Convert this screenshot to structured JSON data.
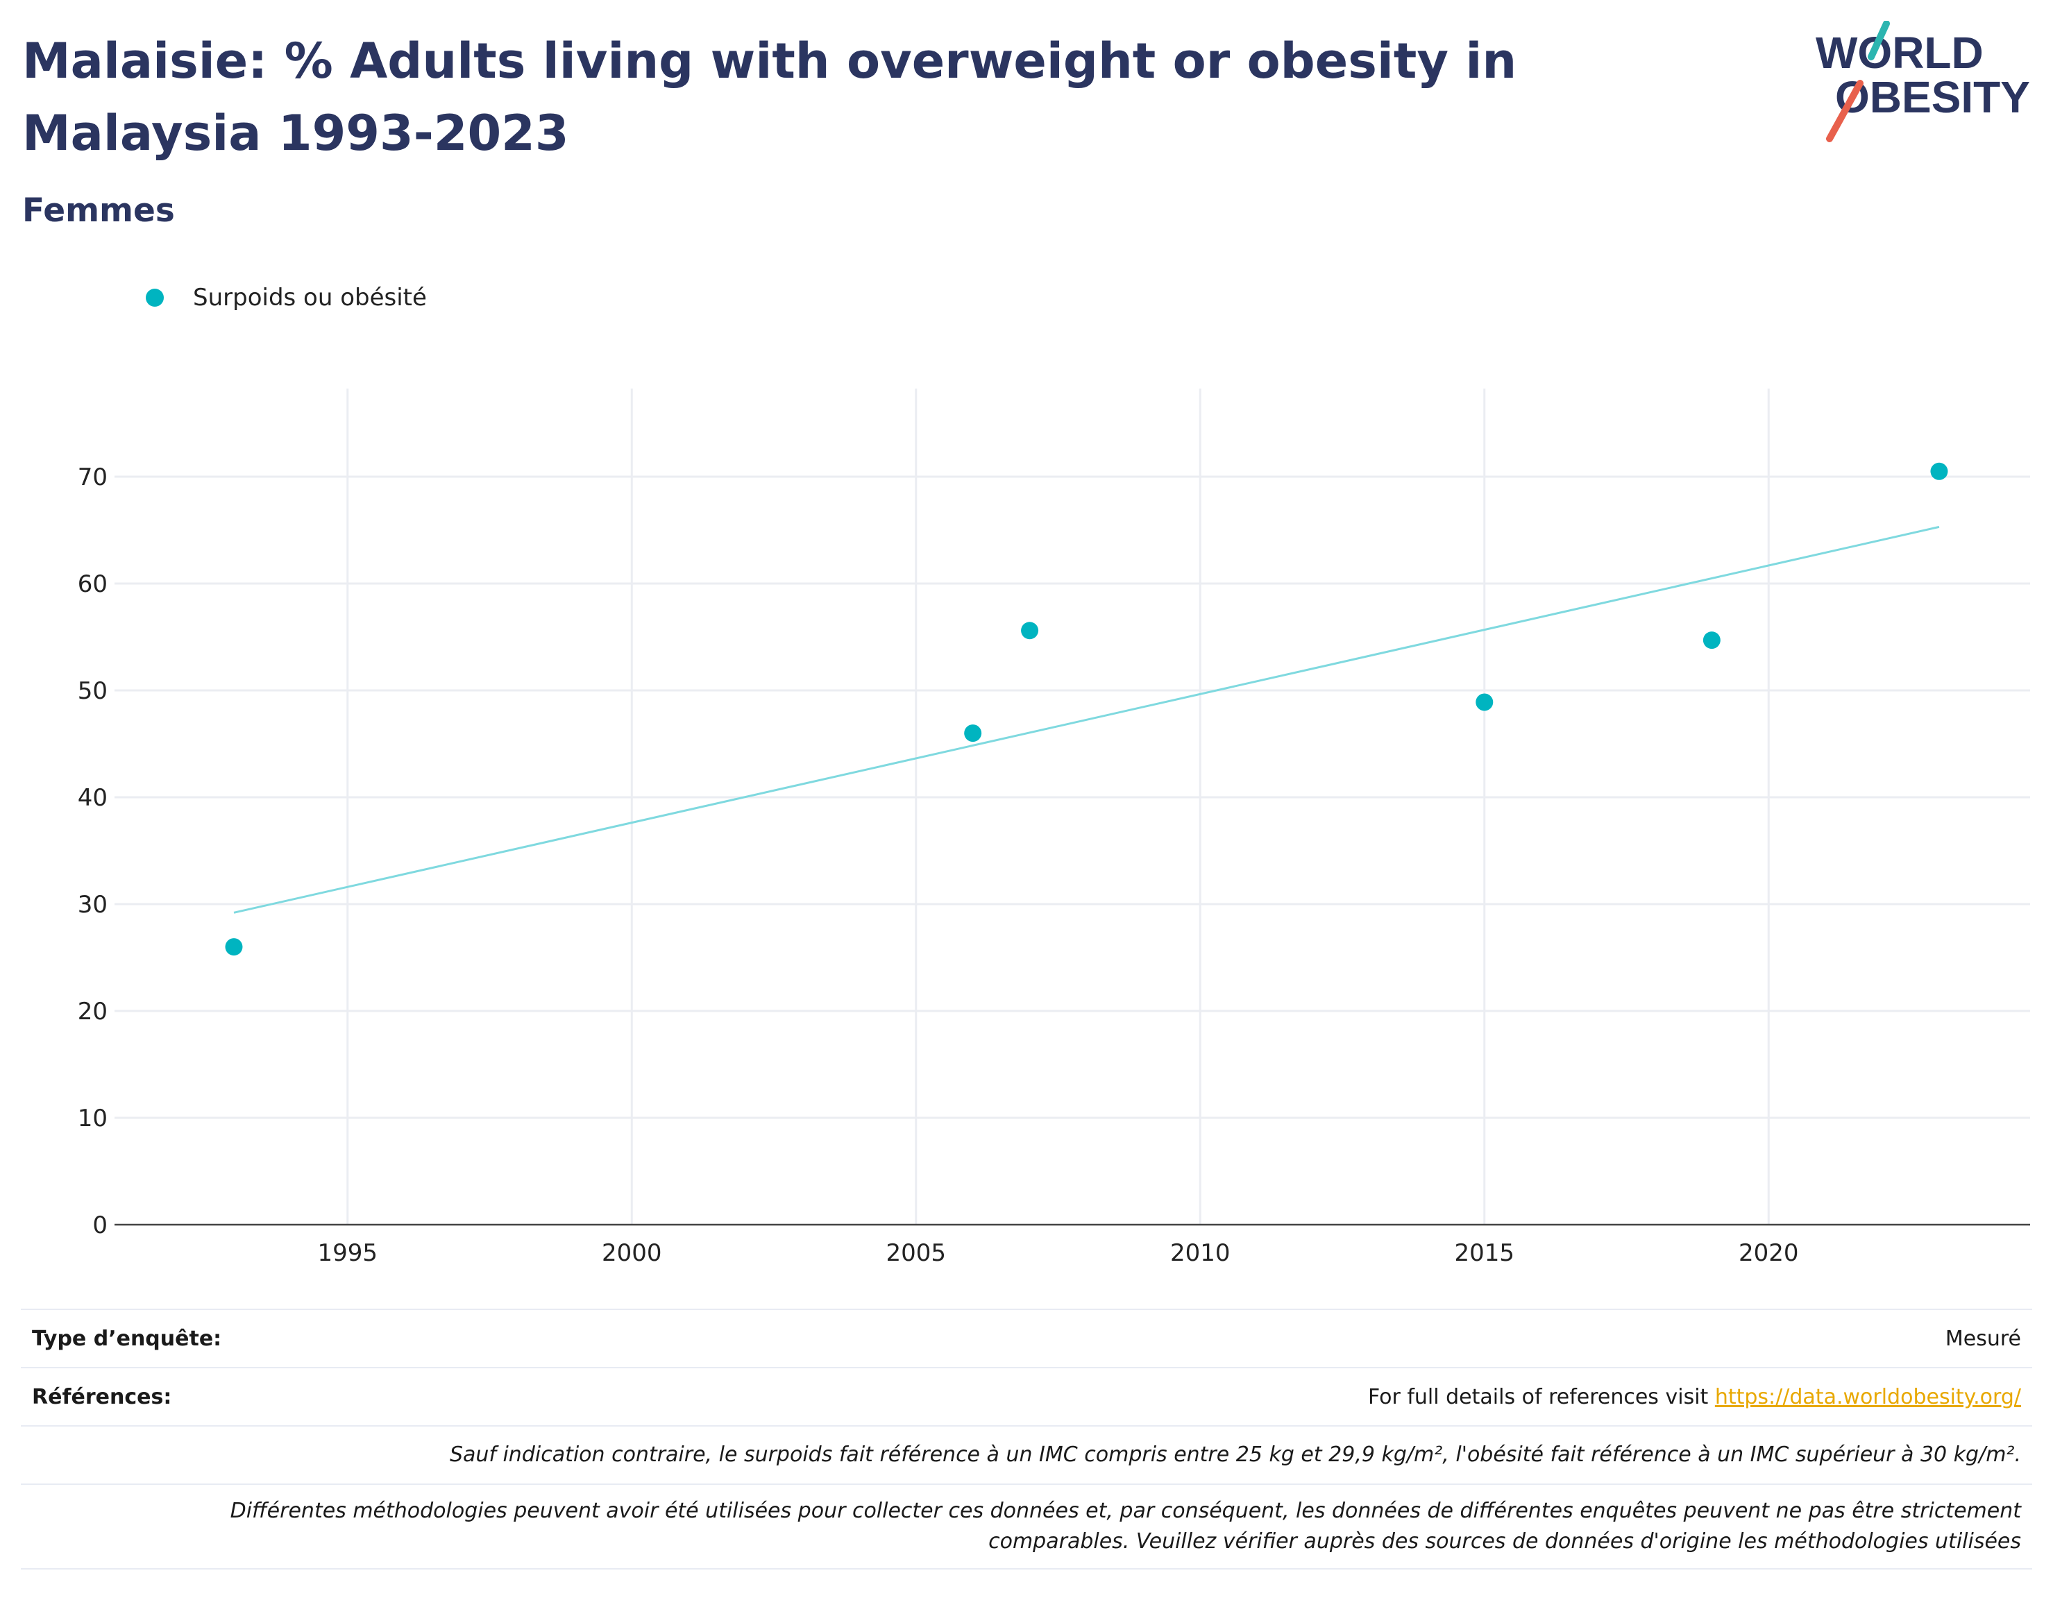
{
  "header": {
    "title": "Malaisie: % Adults living with overweight or obesity in Malaysia 1993-2023",
    "subtitle": "Femmes"
  },
  "logo": {
    "line1": "WORLD",
    "line2": "OBESITY",
    "text_color": "#2b3560",
    "accent_teal": "#2cb5b0",
    "accent_red": "#e8604c"
  },
  "legend": {
    "label": "Surpoids ou obésité"
  },
  "chart_data": {
    "type": "scatter",
    "series": [
      {
        "name": "Surpoids ou obésité",
        "color": "#00b4c0",
        "points": [
          {
            "x": 1993,
            "y": 26.0
          },
          {
            "x": 2006,
            "y": 46.0
          },
          {
            "x": 2007,
            "y": 55.6
          },
          {
            "x": 2015,
            "y": 48.9
          },
          {
            "x": 2019,
            "y": 54.7
          },
          {
            "x": 2023,
            "y": 70.5
          }
        ]
      }
    ],
    "trendline": {
      "color": "#7fd9df",
      "points": [
        {
          "x": 1993,
          "y": 29.2
        },
        {
          "x": 2023,
          "y": 65.3
        }
      ]
    },
    "xlim": [
      1990.9,
      2024.6
    ],
    "ylim": [
      0,
      75
    ],
    "xticks": [
      1995,
      2000,
      2005,
      2010,
      2015,
      2020
    ],
    "yticks": [
      0,
      10,
      20,
      30,
      40,
      50,
      60,
      70
    ],
    "grid": true,
    "legend_position": "top-left"
  },
  "notes": {
    "survey_type_label": "Type d’enquête:",
    "survey_type_value": "Mesuré",
    "references_label": "Références:",
    "references_text": "For full details of references visit ",
    "references_link": "https://data.worldobesity.org/",
    "definition_note": "Sauf indication contraire, le surpoids fait référence à un IMC compris entre 25 kg et 29,9 kg/m², l'obésité fait référence à un IMC supérieur à 30 kg/m².",
    "methodology_note_line1": "Différentes méthodologies peuvent avoir été utilisées pour collecter ces données et, par conséquent, les données de différentes enquêtes peuvent ne pas être strictement",
    "methodology_note_line2": "comparables. Veuillez vérifier auprès des sources de données d'origine les méthodologies utilisées"
  }
}
